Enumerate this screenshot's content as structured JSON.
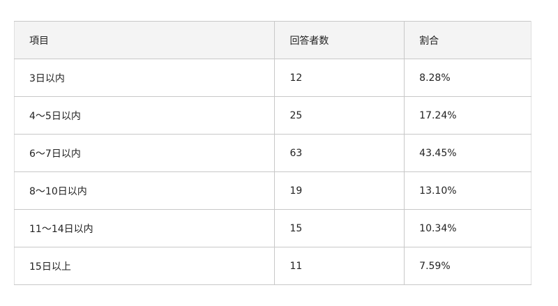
{
  "table": {
    "headers": [
      "項目",
      "回答者数",
      "割合"
    ],
    "rows": [
      [
        "3日以内",
        "12",
        "8.28%"
      ],
      [
        "4〜5日以内",
        "25",
        "17.24%"
      ],
      [
        "6〜7日以内",
        "63",
        "43.45%"
      ],
      [
        "8〜10日以内",
        "19",
        "13.10%"
      ],
      [
        "11〜14日以内",
        "15",
        "10.34%"
      ],
      [
        "15日以上",
        "11",
        "7.59%"
      ]
    ]
  }
}
